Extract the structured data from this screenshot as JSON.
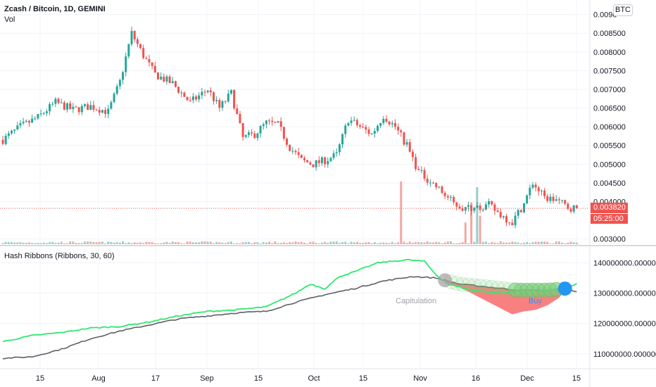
{
  "legend": {
    "title": "Zcash / Bitcoin, 1D, GEMINI",
    "volume_label": "Vol",
    "indicator": "Hash Ribbons (Ribbons, 30, 60)"
  },
  "price_scale": {
    "currency_badge": "BTC",
    "last_price_label": "0.003820",
    "countdown_label": "05:25:00"
  },
  "colors": {
    "up": "#26a69a",
    "down": "#ef5350",
    "up_volume": "#9ccfc9",
    "down_volume": "#f4a6a4",
    "fast_ribbon": "#2ee86f",
    "slow_ribbon": "#5f6068",
    "capitulation_fill": "#f86a6a",
    "buy_dot": "#2196f3",
    "recovery_dot": "#7ccc7c",
    "capitulation_dot": "#a6a6a6",
    "grid": "#f0f3fa"
  },
  "annotations": {
    "capitulation": "Capitulation",
    "buy": "Buy"
  },
  "chart_data": [
    {
      "type": "candlestick",
      "title": "Zcash / Bitcoin, 1D, GEMINI",
      "x_tick_labels": [
        "15",
        "Aug",
        "17",
        "Sep",
        "15",
        "Oct",
        "15",
        "Nov",
        "16",
        "Dec",
        "15"
      ],
      "y_tick_labels": [
        "0.0090",
        "0.008500",
        "0.008000",
        "0.007500",
        "0.007000",
        "0.006500",
        "0.006000",
        "0.005500",
        "0.005000",
        "0.004500",
        "0.004000",
        "0.003000"
      ],
      "ylim": [
        0.0029,
        0.0092
      ],
      "last_price": 0.00382,
      "close_path": [
        [
          0,
          0.00565
        ],
        [
          6,
          0.006
        ],
        [
          12,
          0.00625
        ],
        [
          18,
          0.00665
        ],
        [
          24,
          0.00645
        ],
        [
          30,
          0.00655
        ],
        [
          36,
          0.0064
        ],
        [
          40,
          0.0072
        ],
        [
          44,
          0.0085
        ],
        [
          48,
          0.0079
        ],
        [
          52,
          0.0074
        ],
        [
          58,
          0.00715
        ],
        [
          64,
          0.00665
        ],
        [
          70,
          0.007
        ],
        [
          74,
          0.0065
        ],
        [
          78,
          0.0069
        ],
        [
          82,
          0.0057
        ],
        [
          86,
          0.0058
        ],
        [
          90,
          0.0061
        ],
        [
          94,
          0.00605
        ],
        [
          98,
          0.00545
        ],
        [
          102,
          0.0051
        ],
        [
          106,
          0.005
        ],
        [
          110,
          0.0051
        ],
        [
          114,
          0.00525
        ],
        [
          118,
          0.0062
        ],
        [
          122,
          0.006
        ],
        [
          126,
          0.0058
        ],
        [
          130,
          0.0063
        ],
        [
          134,
          0.006
        ],
        [
          138,
          0.0055
        ],
        [
          142,
          0.0048
        ],
        [
          146,
          0.00455
        ],
        [
          150,
          0.00425
        ],
        [
          154,
          0.00395
        ],
        [
          158,
          0.0038
        ],
        [
          162,
          0.00385
        ],
        [
          166,
          0.0039
        ],
        [
          170,
          0.00365
        ],
        [
          174,
          0.00345
        ],
        [
          178,
          0.00395
        ],
        [
          181,
          0.0045
        ],
        [
          185,
          0.0041
        ],
        [
          189,
          0.00405
        ],
        [
          193,
          0.00385
        ],
        [
          196,
          0.00382
        ]
      ],
      "volume_spikes": [
        {
          "day": 136,
          "level": 0.99,
          "dir": "down"
        },
        {
          "day": 158,
          "level": 0.34,
          "dir": "down"
        },
        {
          "day": 160,
          "level": 0.66,
          "dir": "down"
        },
        {
          "day": 162,
          "level": 0.9,
          "dir": "up"
        },
        {
          "day": 163,
          "level": 0.45,
          "dir": "down"
        }
      ],
      "series": [
        {
          "name": "Vol"
        }
      ]
    },
    {
      "type": "line",
      "title": "Hash Ribbons (Ribbons, 30, 60)",
      "y_tick_labels": [
        "140000000.000000",
        "130000000.000000",
        "120000000.000000",
        "110000000.000000"
      ],
      "ylim": [
        106000000,
        145000000
      ],
      "series": [
        {
          "role": "fast",
          "points": [
            [
              0,
              114000000
            ],
            [
              10,
              116000000
            ],
            [
              20,
              117000000
            ],
            [
              30,
              118500000
            ],
            [
              40,
              119000000
            ],
            [
              50,
              120500000
            ],
            [
              60,
              122500000
            ],
            [
              70,
              124000000
            ],
            [
              80,
              124500000
            ],
            [
              90,
              125500000
            ],
            [
              100,
              130000000
            ],
            [
              105,
              133000000
            ],
            [
              110,
              131500000
            ],
            [
              115,
              135500000
            ],
            [
              120,
              137000000
            ],
            [
              128,
              140000000
            ],
            [
              138,
              141000000
            ],
            [
              144,
              140500000
            ],
            [
              148,
              136000000
            ],
            [
              152,
              133000000
            ],
            [
              160,
              131000000
            ],
            [
              170,
              130000000
            ],
            [
              180,
              130500000
            ],
            [
              190,
              131000000
            ],
            [
              196,
              133000000
            ]
          ]
        },
        {
          "role": "slow",
          "points": [
            [
              0,
              108500000
            ],
            [
              10,
              109000000
            ],
            [
              20,
              111500000
            ],
            [
              30,
              115000000
            ],
            [
              40,
              117500000
            ],
            [
              50,
              119500000
            ],
            [
              60,
              121500000
            ],
            [
              70,
              122500000
            ],
            [
              80,
              123500000
            ],
            [
              90,
              124000000
            ],
            [
              100,
              127000000
            ],
            [
              110,
              129500000
            ],
            [
              120,
              131500000
            ],
            [
              130,
              134000000
            ],
            [
              140,
              135500000
            ],
            [
              148,
              135000000
            ],
            [
              156,
              133000000
            ],
            [
              166,
              132000000
            ],
            [
              176,
              131000000
            ],
            [
              186,
              131000000
            ],
            [
              192,
              131500000
            ],
            [
              196,
              130500000
            ]
          ]
        }
      ],
      "capitulation_dip": [
        [
          151,
          133500000
        ],
        [
          156,
          132000000
        ],
        [
          162,
          129000000
        ],
        [
          168,
          126000000
        ],
        [
          174,
          123000000
        ],
        [
          178,
          124000000
        ],
        [
          182,
          124500000
        ],
        [
          186,
          126000000
        ],
        [
          190,
          128500000
        ],
        [
          192,
          131000000
        ]
      ],
      "recovery_marker_days": [
        175,
        177,
        179,
        181,
        183,
        185,
        187,
        189
      ],
      "buy_marker_day": 192,
      "capitulation_marker_day": 151
    }
  ]
}
